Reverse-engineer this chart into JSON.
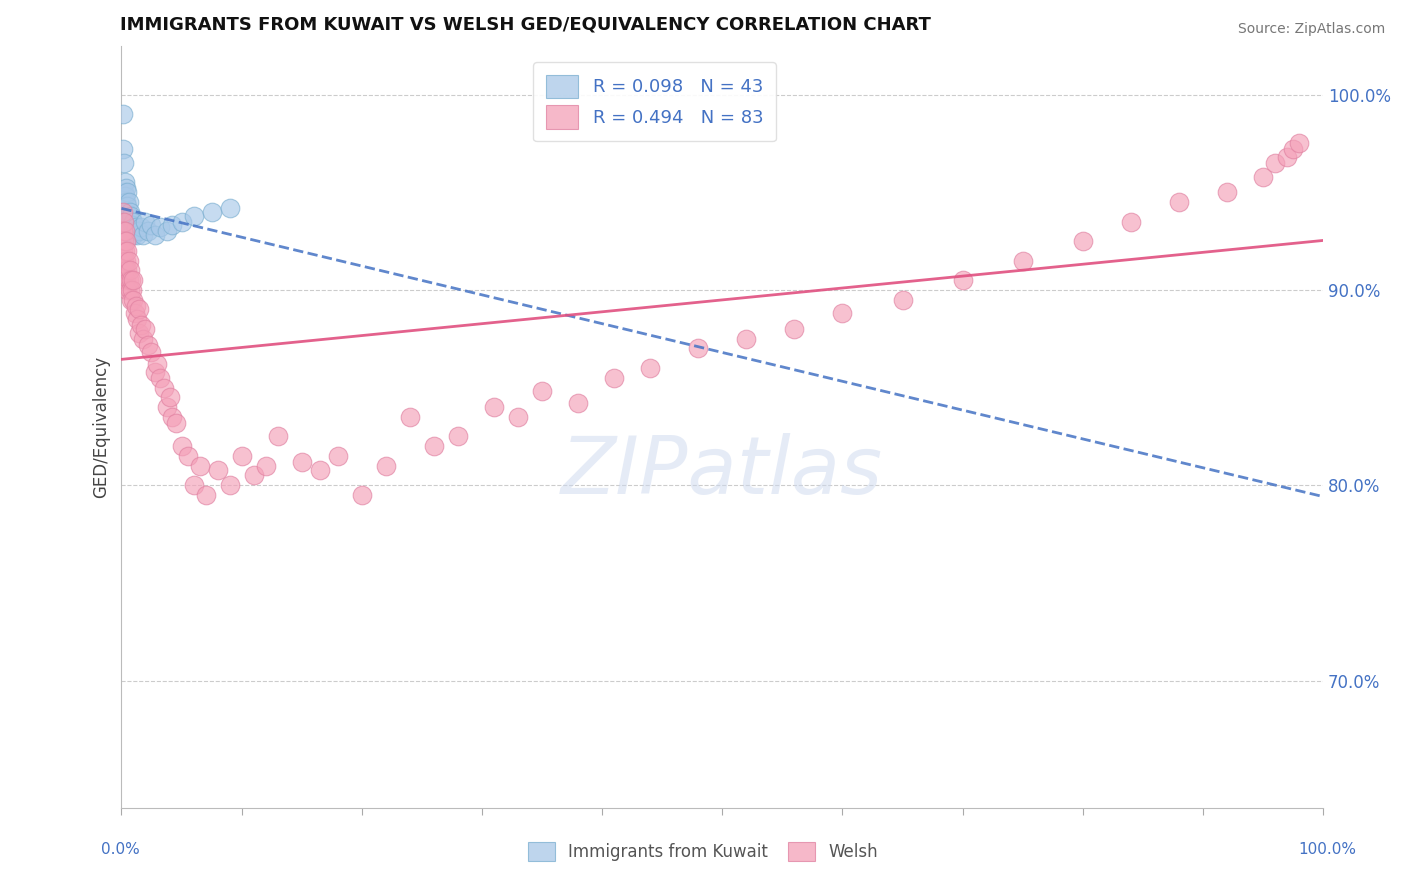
{
  "title": "IMMIGRANTS FROM KUWAIT VS WELSH GED/EQUIVALENCY CORRELATION CHART",
  "source": "Source: ZipAtlas.com",
  "ylabel": "GED/Equivalency",
  "legend_label1": "Immigrants from Kuwait",
  "legend_label2": "Welsh",
  "r1": 0.098,
  "n1": 43,
  "r2": 0.494,
  "n2": 83,
  "color1": "#a8c8e8",
  "color2": "#f4a0b8",
  "trendline1_color": "#4472c4",
  "trendline2_color": "#e05080",
  "ytick_labels": [
    "70.0%",
    "80.0%",
    "90.0%",
    "100.0%"
  ],
  "ytick_values": [
    0.7,
    0.8,
    0.9,
    1.0
  ],
  "xlim": [
    0.0,
    1.0
  ],
  "ylim": [
    0.635,
    1.025
  ],
  "watermark_text": "ZIPatlas",
  "blue_points_x": [
    0.001,
    0.001,
    0.002,
    0.002,
    0.003,
    0.003,
    0.003,
    0.003,
    0.004,
    0.004,
    0.004,
    0.004,
    0.005,
    0.005,
    0.005,
    0.005,
    0.006,
    0.006,
    0.006,
    0.007,
    0.007,
    0.008,
    0.008,
    0.009,
    0.01,
    0.01,
    0.011,
    0.012,
    0.013,
    0.015,
    0.016,
    0.018,
    0.02,
    0.022,
    0.025,
    0.028,
    0.032,
    0.038,
    0.042,
    0.05,
    0.06,
    0.075,
    0.09
  ],
  "blue_points_y": [
    0.99,
    0.972,
    0.965,
    0.95,
    0.955,
    0.948,
    0.94,
    0.935,
    0.952,
    0.945,
    0.94,
    0.935,
    0.95,
    0.943,
    0.938,
    0.93,
    0.945,
    0.938,
    0.93,
    0.94,
    0.932,
    0.938,
    0.928,
    0.933,
    0.935,
    0.928,
    0.93,
    0.932,
    0.928,
    0.93,
    0.932,
    0.928,
    0.935,
    0.93,
    0.933,
    0.928,
    0.932,
    0.93,
    0.933,
    0.935,
    0.938,
    0.94,
    0.942
  ],
  "pink_points_x": [
    0.001,
    0.001,
    0.001,
    0.002,
    0.002,
    0.002,
    0.003,
    0.003,
    0.003,
    0.004,
    0.004,
    0.004,
    0.005,
    0.005,
    0.005,
    0.006,
    0.006,
    0.007,
    0.007,
    0.008,
    0.008,
    0.009,
    0.01,
    0.01,
    0.011,
    0.012,
    0.013,
    0.015,
    0.015,
    0.016,
    0.018,
    0.02,
    0.022,
    0.025,
    0.028,
    0.03,
    0.032,
    0.035,
    0.038,
    0.04,
    0.042,
    0.045,
    0.05,
    0.055,
    0.06,
    0.065,
    0.07,
    0.08,
    0.09,
    0.1,
    0.11,
    0.12,
    0.13,
    0.15,
    0.165,
    0.18,
    0.2,
    0.22,
    0.24,
    0.26,
    0.28,
    0.31,
    0.33,
    0.35,
    0.38,
    0.41,
    0.44,
    0.48,
    0.52,
    0.56,
    0.6,
    0.65,
    0.7,
    0.75,
    0.8,
    0.84,
    0.88,
    0.92,
    0.95,
    0.96,
    0.97,
    0.975,
    0.98
  ],
  "pink_points_y": [
    0.94,
    0.93,
    0.92,
    0.935,
    0.925,
    0.915,
    0.93,
    0.92,
    0.91,
    0.925,
    0.915,
    0.905,
    0.92,
    0.91,
    0.9,
    0.915,
    0.905,
    0.91,
    0.9,
    0.905,
    0.895,
    0.9,
    0.905,
    0.895,
    0.888,
    0.892,
    0.885,
    0.89,
    0.878,
    0.882,
    0.875,
    0.88,
    0.872,
    0.868,
    0.858,
    0.862,
    0.855,
    0.85,
    0.84,
    0.845,
    0.835,
    0.832,
    0.82,
    0.815,
    0.8,
    0.81,
    0.795,
    0.808,
    0.8,
    0.815,
    0.805,
    0.81,
    0.825,
    0.812,
    0.808,
    0.815,
    0.795,
    0.81,
    0.835,
    0.82,
    0.825,
    0.84,
    0.835,
    0.848,
    0.842,
    0.855,
    0.86,
    0.87,
    0.875,
    0.88,
    0.888,
    0.895,
    0.905,
    0.915,
    0.925,
    0.935,
    0.945,
    0.95,
    0.958,
    0.965,
    0.968,
    0.972,
    0.975
  ]
}
